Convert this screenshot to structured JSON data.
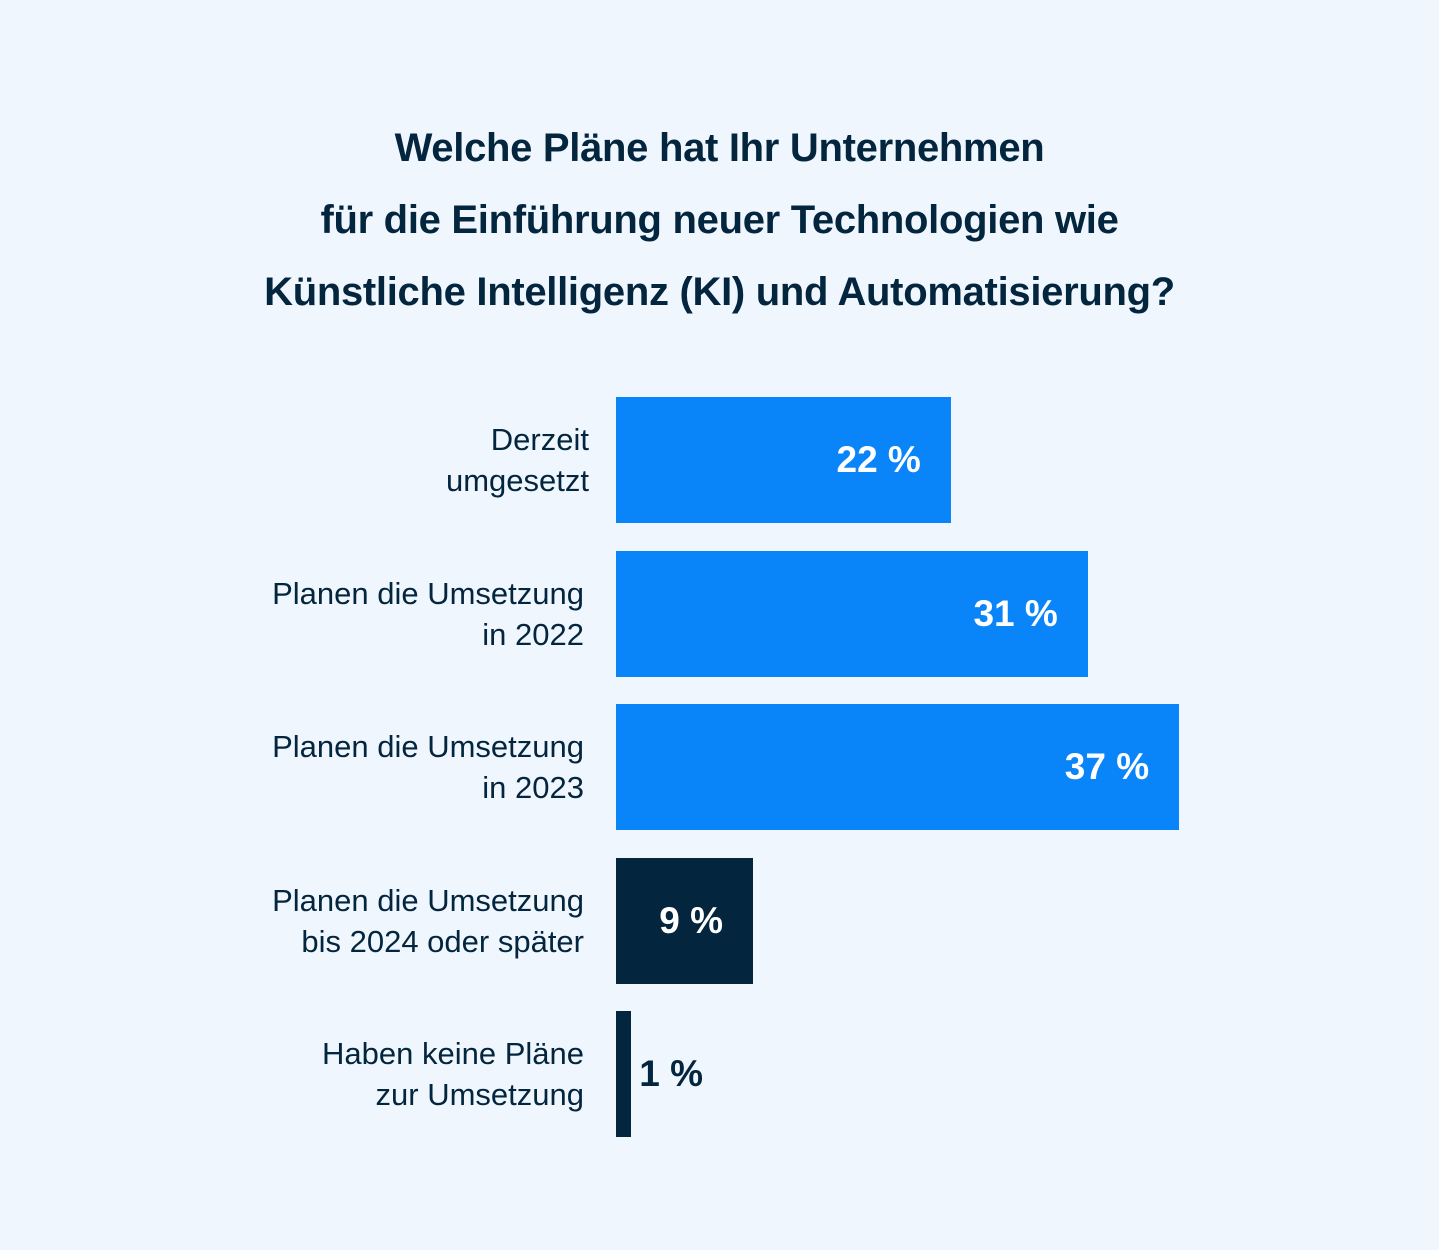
{
  "chart_data": {
    "type": "bar",
    "orientation": "horizontal",
    "title": [
      "Welche Pläne hat Ihr Unternehmen",
      "für die Einführung neuer Technologien wie",
      "Künstliche Intelligenz (KI) und Automatisierung?"
    ],
    "categories": [
      [
        "Derzeit",
        "umgesetzt"
      ],
      [
        "Planen die Umsetzung",
        "in 2022"
      ],
      [
        "Planen die Umsetzung",
        "in 2023"
      ],
      [
        "Planen die Umsetzung",
        "bis 2024 oder später"
      ],
      [
        "Haben keine Pläne",
        "zur Umsetzung"
      ]
    ],
    "values": [
      22,
      31,
      37,
      9,
      1
    ],
    "value_labels": [
      "22 %",
      "31 %",
      "37 %",
      "9 %",
      "1 %"
    ],
    "bar_colors": [
      "#0A84F9",
      "#0A84F9",
      "#0A84F9",
      "#03263E",
      "#03263E"
    ],
    "unit": "%",
    "xlim": [
      0,
      37
    ],
    "grid": false,
    "legend": "none"
  },
  "colors": {
    "background": "#F0F6FE",
    "text": "#03263E",
    "value_on_bar": "#FFFFFF"
  }
}
